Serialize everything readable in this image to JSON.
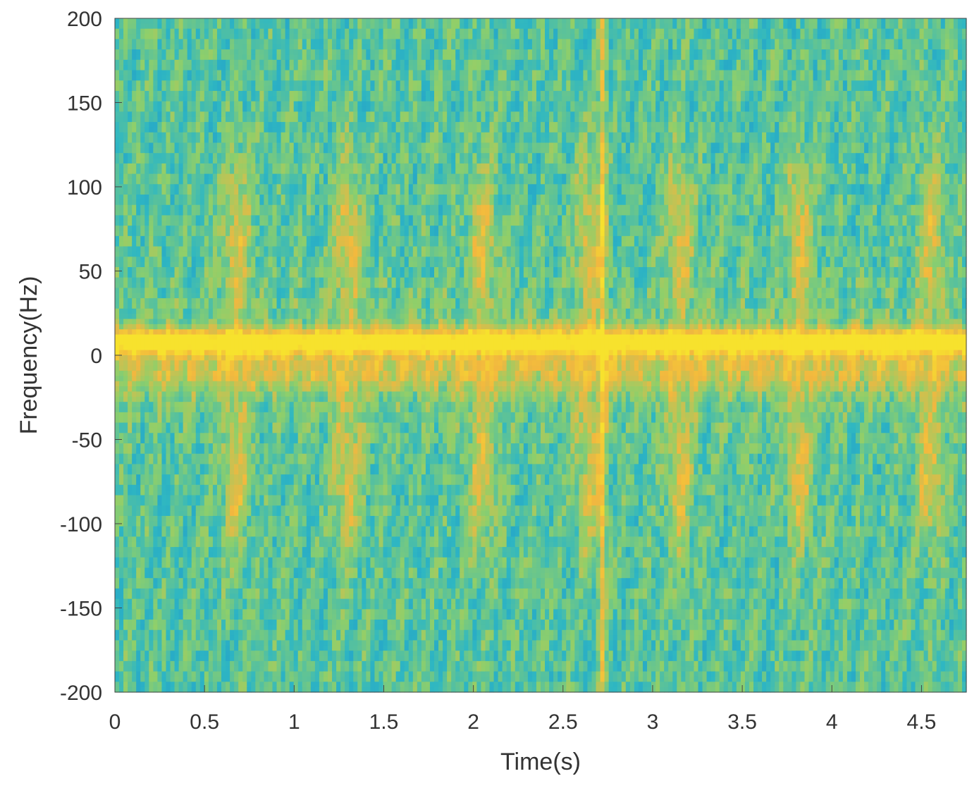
{
  "chart_data": {
    "type": "heatmap",
    "title": "",
    "xlabel": "Time(s)",
    "ylabel": "Frequency(Hz)",
    "xlim": [
      0,
      4.75
    ],
    "ylim": [
      -200,
      200
    ],
    "x_ticks": [
      0,
      0.5,
      1,
      1.5,
      2,
      2.5,
      3,
      3.5,
      4,
      4.5
    ],
    "x_tick_labels": [
      "0",
      "0.5",
      "1",
      "1.5",
      "2",
      "2.5",
      "3",
      "3.5",
      "4",
      "4.5"
    ],
    "y_ticks": [
      200,
      150,
      100,
      50,
      0,
      -50,
      -100,
      -150,
      -200
    ],
    "y_tick_labels": [
      "200",
      "150",
      "100",
      "50",
      "0",
      "-50",
      "-100",
      "-150",
      "-200"
    ],
    "grid": false,
    "colormap": [
      "#1a8fd0",
      "#2fb7c2",
      "#8fcf6a",
      "#f2b73f",
      "#f7e22d"
    ],
    "features": {
      "dominant_band_hz": 8,
      "impulse_time_s": 2.72,
      "burst_times_s": [
        0.68,
        1.3,
        2.05,
        2.65,
        3.15,
        3.82,
        4.55
      ]
    }
  }
}
